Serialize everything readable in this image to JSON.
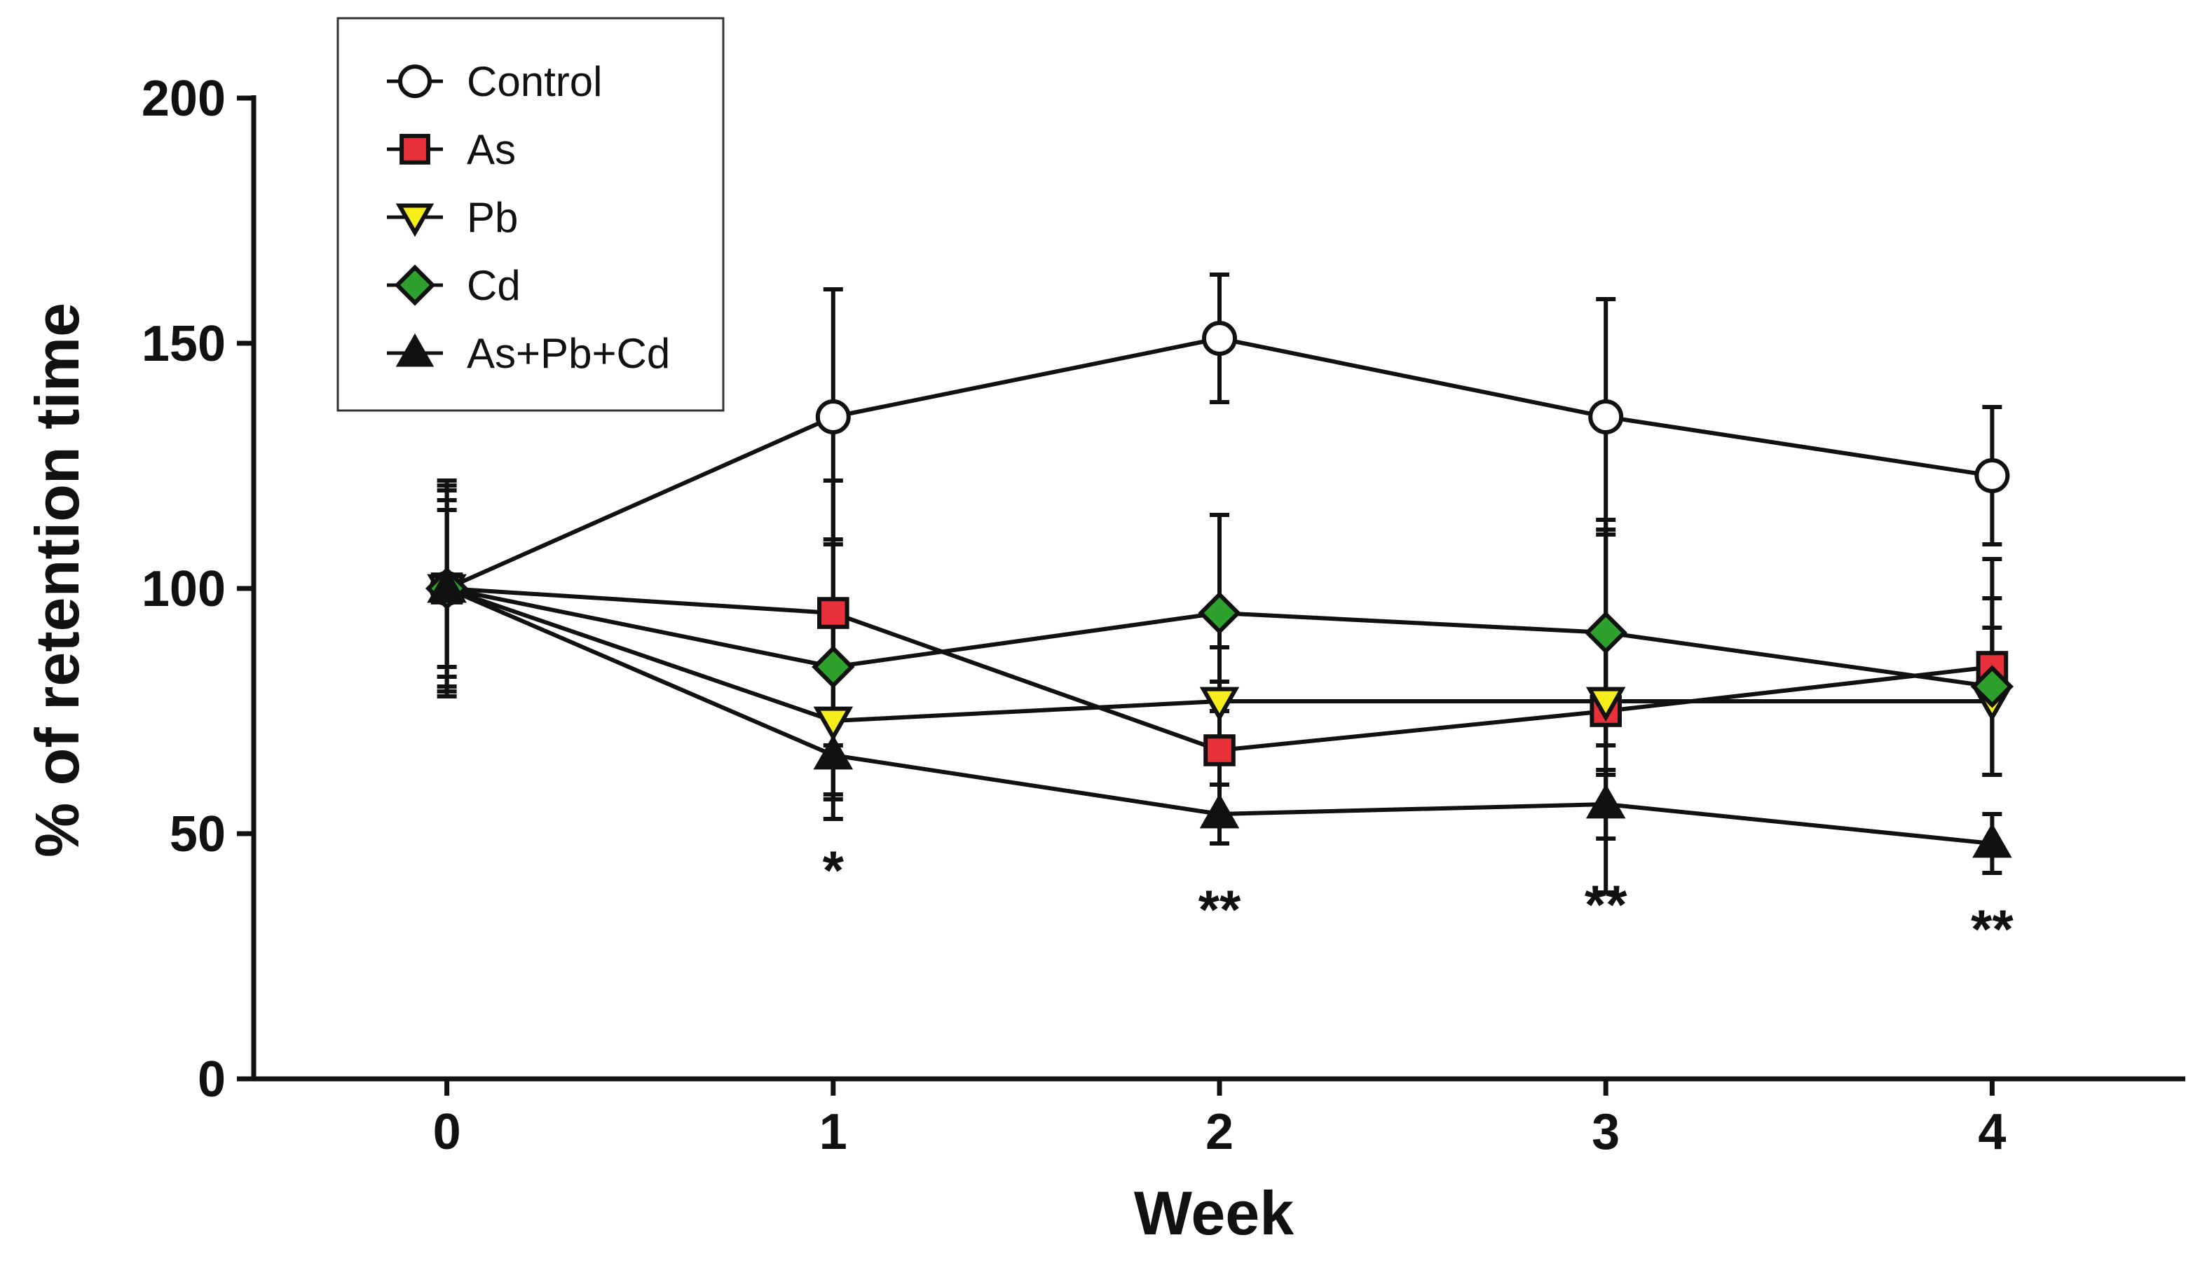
{
  "chart_data": {
    "type": "line",
    "title": "",
    "xlabel": "Week",
    "ylabel": "% of retention time",
    "xlim": [
      -0.5,
      4.5
    ],
    "ylim": [
      0,
      200
    ],
    "x": [
      0,
      1,
      2,
      3,
      4
    ],
    "x_ticks": [
      "0",
      "1",
      "2",
      "3",
      "4"
    ],
    "y_ticks": [
      "0",
      "50",
      "100",
      "150",
      "200"
    ],
    "grid": false,
    "legend_position": "top-left",
    "series": [
      {
        "name": "Control",
        "marker": "circle",
        "fill": "#ffffff",
        "values": [
          100,
          135,
          151,
          135,
          123
        ],
        "error": [
          21,
          26,
          13,
          24,
          14
        ]
      },
      {
        "name": "As",
        "marker": "square",
        "fill": "#e8303a",
        "values": [
          100,
          95,
          67,
          75,
          84
        ],
        "error": [
          20,
          27,
          14,
          37,
          22
        ]
      },
      {
        "name": "Pb",
        "marker": "triangle-down",
        "fill": "#f5ee1a",
        "values": [
          100,
          73,
          77,
          77,
          77
        ],
        "error": [
          18,
          20,
          11,
          15,
          15
        ]
      },
      {
        "name": "Cd",
        "marker": "diamond",
        "fill": "#2ea02c",
        "values": [
          100,
          84,
          95,
          91,
          80
        ],
        "error": [
          22,
          26,
          20,
          23,
          18
        ]
      },
      {
        "name": "As+Pb+Cd",
        "marker": "triangle-up",
        "fill": "#111111",
        "values": [
          100,
          66,
          54,
          56,
          48
        ],
        "error": [
          16,
          9,
          6,
          7,
          6
        ]
      }
    ],
    "annotations": [
      {
        "x": 1,
        "y": 43,
        "text": "*"
      },
      {
        "x": 2,
        "y": 35,
        "text": "**"
      },
      {
        "x": 3,
        "y": 36,
        "text": "**"
      },
      {
        "x": 4,
        "y": 31,
        "text": "**"
      }
    ]
  }
}
